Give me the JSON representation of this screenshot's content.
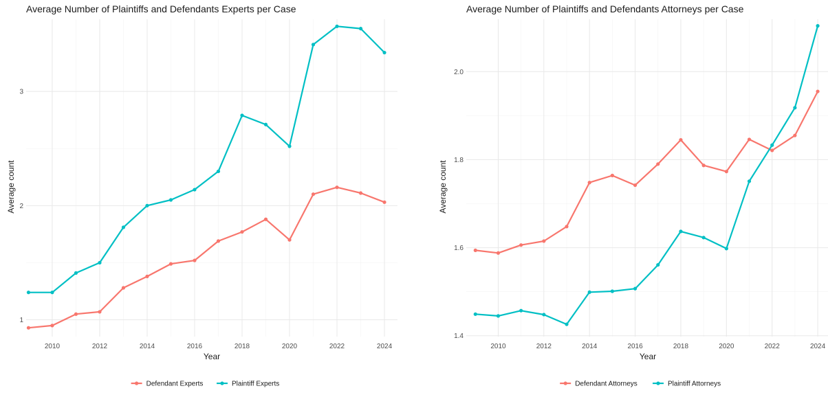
{
  "colors": {
    "series_a": "#F8766D",
    "series_b": "#00BFC4",
    "grid_major": "#E8E8E8",
    "grid_minor": "#F3F3F3",
    "text": "#1a1a1a",
    "tick": "#4d4d4d"
  },
  "chart_data": [
    {
      "type": "line",
      "title": "Average Number of Plaintiffs and Defendants Experts per Case",
      "xlabel": "Year",
      "ylabel": "Average count",
      "grid": true,
      "legend_position": "bottom",
      "xlim": [
        2008.9,
        2024.55
      ],
      "ylim": [
        0.853,
        3.632
      ],
      "x_ticks": [
        2010,
        2012,
        2014,
        2016,
        2018,
        2020,
        2022,
        2024
      ],
      "y_ticks": [
        1,
        2,
        3
      ],
      "x": [
        2009,
        2010,
        2011,
        2012,
        2013,
        2014,
        2015,
        2016,
        2017,
        2018,
        2019,
        2020,
        2021,
        2022,
        2023,
        2024
      ],
      "series": [
        {
          "name": "Defendant Experts",
          "values": [
            0.93,
            0.95,
            1.05,
            1.07,
            1.28,
            1.38,
            1.49,
            1.52,
            1.69,
            1.77,
            1.88,
            1.7,
            2.1,
            2.16,
            2.11,
            2.03
          ]
        },
        {
          "name": "Plaintiff Experts",
          "values": [
            1.24,
            1.24,
            1.41,
            1.5,
            1.81,
            2.0,
            2.05,
            2.14,
            2.3,
            2.79,
            2.71,
            2.52,
            3.41,
            3.57,
            3.55,
            3.34
          ]
        }
      ]
    },
    {
      "type": "line",
      "title": "Average Number of Plaintiffs and Defendants Attorneys per Case",
      "xlabel": "Year",
      "ylabel": "Average count",
      "grid": true,
      "legend_position": "bottom",
      "xlim": [
        2008.6,
        2024.45
      ],
      "ylim": [
        1.398,
        2.119
      ],
      "x_ticks": [
        2010,
        2012,
        2014,
        2016,
        2018,
        2020,
        2022,
        2024
      ],
      "y_ticks": [
        1.4,
        1.6,
        1.8,
        2.0
      ],
      "y_tick_labels": [
        "1.4",
        "1.6",
        "1.8",
        "2.0"
      ],
      "x": [
        2009,
        2010,
        2011,
        2012,
        2013,
        2014,
        2015,
        2016,
        2017,
        2018,
        2019,
        2020,
        2021,
        2022,
        2023,
        2024
      ],
      "series": [
        {
          "name": "Defendant Attorneys",
          "values": [
            1.594,
            1.588,
            1.606,
            1.615,
            1.648,
            1.748,
            1.764,
            1.742,
            1.79,
            1.845,
            1.787,
            1.773,
            1.846,
            1.821,
            1.855,
            1.955
          ]
        },
        {
          "name": "Plaintiff Attorneys",
          "values": [
            1.449,
            1.445,
            1.457,
            1.448,
            1.426,
            1.499,
            1.501,
            1.507,
            1.561,
            1.637,
            1.623,
            1.598,
            1.751,
            1.833,
            1.918,
            2.104
          ]
        }
      ]
    }
  ]
}
